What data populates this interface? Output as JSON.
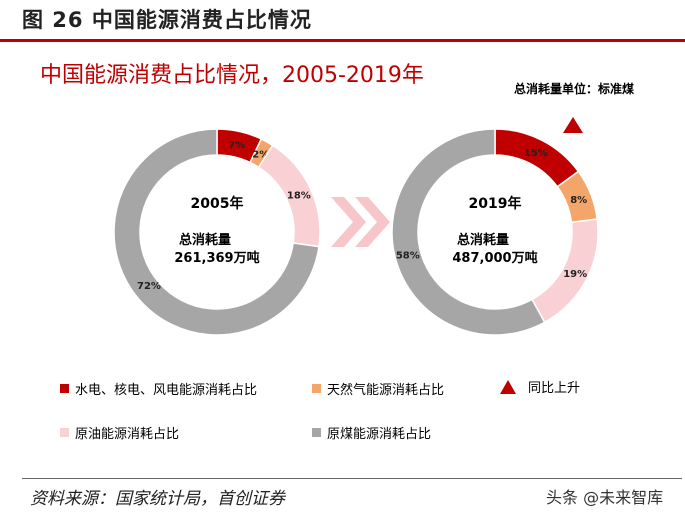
{
  "header": {
    "figure_title": "图 26 中国能源消费占比情况",
    "chart_title": "中国能源消费占比情况，2005-2019年",
    "unit": "总消耗量单位：标准煤"
  },
  "colors": {
    "hydro_nuclear_wind": "#c00000",
    "gas": "#f4a56a",
    "oil": "#f9d0d4",
    "coal": "#a6a6a6",
    "accent": "#c00000",
    "arrow": "#f6c6c8"
  },
  "chart_data": [
    {
      "type": "pie",
      "year": "2005年",
      "center_label": "总消耗量",
      "center_value": "261,369万吨",
      "slices": [
        {
          "name": "水电、核电、风电能源消耗占比",
          "value": 7,
          "label": "7%"
        },
        {
          "name": "天然气能源消耗占比",
          "value": 2,
          "label": "2%"
        },
        {
          "name": "原油能源消耗占比",
          "value": 18,
          "label": "18%"
        },
        {
          "name": "原煤能源消耗占比",
          "value": 72,
          "label": "72%"
        }
      ]
    },
    {
      "type": "pie",
      "year": "2019年",
      "center_label": "总消耗量",
      "center_value": "487,000万吨",
      "slices": [
        {
          "name": "水电、核电、风电能源消耗占比",
          "value": 15,
          "label": "15%"
        },
        {
          "name": "天然气能源消耗占比",
          "value": 8,
          "label": "8%"
        },
        {
          "name": "原油能源消耗占比",
          "value": 19,
          "label": "19%"
        },
        {
          "name": "原煤能源消耗占比",
          "value": 58,
          "label": "58%"
        }
      ],
      "increase_marker": "同比上升"
    }
  ],
  "legend": [
    {
      "label": "水电、核电、风电能源消耗占比",
      "color": "#c00000"
    },
    {
      "label": "天然气能源消耗占比",
      "color": "#f4a56a"
    },
    {
      "label": "同比上升",
      "marker": "triangle"
    },
    {
      "label": "原油能源消耗占比",
      "color": "#f9d0d4"
    },
    {
      "label": "原煤能源消耗占比",
      "color": "#a6a6a6"
    }
  ],
  "footer": {
    "source": "资料来源：国家统计局，首创证券",
    "watermark": "头条 @未来智库"
  }
}
